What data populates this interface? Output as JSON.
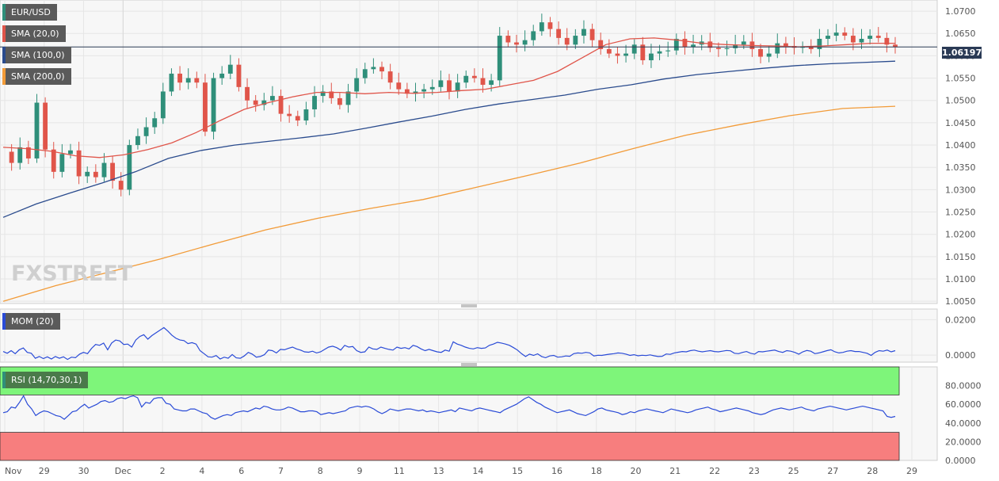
{
  "chart_data": [
    {
      "type": "candlestick",
      "symbol": "EUR/USD",
      "x_tick_labels": [
        "Nov",
        "29",
        "30",
        "Dec",
        "2",
        "4",
        "6",
        "7",
        "8",
        "9",
        "11",
        "13",
        "14",
        "15",
        "16",
        "18",
        "20",
        "21",
        "22",
        "23",
        "25",
        "27",
        "28",
        "29"
      ],
      "y_ticks": [
        "1.0700",
        "1.0650",
        "1.0600",
        "1.0550",
        "1.0500",
        "1.0450",
        "1.0400",
        "1.0350",
        "1.0300",
        "1.0250",
        "1.0200",
        "1.0150",
        "1.0100",
        "1.0050"
      ],
      "ylim": [
        1.0045,
        1.0725
      ],
      "last_price": "1.06197",
      "last_price_value": 1.06197,
      "candle_path": [
        1.0385,
        1.036,
        1.0395,
        1.037,
        1.0495,
        1.039,
        1.034,
        1.038,
        1.0388,
        1.033,
        1.034,
        1.0328,
        1.036,
        1.032,
        1.03,
        1.04,
        1.042,
        1.044,
        1.046,
        1.052,
        1.056,
        1.054,
        1.055,
        1.054,
        1.043,
        1.055,
        1.056,
        1.058,
        1.053,
        1.05,
        1.049,
        1.05,
        1.051,
        1.047,
        1.0465,
        1.0455,
        1.048,
        1.051,
        1.052,
        1.0505,
        1.049,
        1.052,
        1.055,
        1.057,
        1.0575,
        1.0565,
        1.054,
        1.0525,
        1.0515,
        1.052,
        1.0525,
        1.053,
        1.0545,
        1.052,
        1.054,
        1.0555,
        1.055,
        1.0535,
        1.0545,
        1.0645,
        1.063,
        1.0625,
        1.0635,
        1.0655,
        1.0675,
        1.066,
        1.064,
        1.0625,
        1.0645,
        1.066,
        1.0635,
        1.0615,
        1.0605,
        1.06,
        1.0605,
        1.0625,
        1.059,
        1.0605,
        1.061,
        1.0612,
        1.0638,
        1.062,
        1.0625,
        1.0632,
        1.0618,
        1.0615,
        1.0617,
        1.0625,
        1.0632,
        1.0615,
        1.0598,
        1.0605,
        1.0628,
        1.0622,
        1.0618,
        1.062,
        1.0615,
        1.0638,
        1.0645,
        1.0652,
        1.0645,
        1.063,
        1.0638,
        1.0645,
        1.064,
        1.0625,
        1.062
      ],
      "series": [
        {
          "name": "SMA (20,0)",
          "color": "#e0554a",
          "values": [
            1.0395,
            1.0392,
            1.0386,
            1.0376,
            1.0372,
            1.0378,
            1.039,
            1.0405,
            1.0428,
            1.0455,
            1.048,
            1.0495,
            1.0508,
            1.0518,
            1.0518,
            1.0515,
            1.0518,
            1.0516,
            1.0518,
            1.0522,
            1.0525,
            1.0535,
            1.0545,
            1.0565,
            1.0595,
            1.0625,
            1.0638,
            1.064,
            1.0635,
            1.0628,
            1.0625,
            1.0623,
            1.0622,
            1.062,
            1.0622,
            1.0625,
            1.0628,
            1.0628
          ]
        },
        {
          "name": "SMA (100,0)",
          "color": "#2a4b8d",
          "values": [
            1.0238,
            1.0268,
            1.0292,
            1.0315,
            1.034,
            1.037,
            1.0388,
            1.04,
            1.0408,
            1.0416,
            1.0425,
            1.0438,
            1.0452,
            1.0465,
            1.048,
            1.0492,
            1.0502,
            1.0512,
            1.0525,
            1.0535,
            1.0548,
            1.0558,
            1.0565,
            1.0572,
            1.0578,
            1.0582,
            1.0585,
            1.0588
          ]
        },
        {
          "name": "SMA (200,0)",
          "color": "#f29b38",
          "values": [
            1.005,
            1.0085,
            1.0115,
            1.0145,
            1.0178,
            1.021,
            1.0236,
            1.0258,
            1.0278,
            1.0305,
            1.0332,
            1.036,
            1.0392,
            1.0422,
            1.0445,
            1.0466,
            1.0482,
            1.0487
          ]
        }
      ]
    },
    {
      "type": "line",
      "name": "MOM (20)",
      "y_ticks": [
        "0.0200",
        "0.0000"
      ],
      "ylim": [
        -0.004,
        0.026
      ],
      "series": [
        {
          "name": "MOM (20)",
          "color": "#2a4bd7",
          "values": [
            0.002,
            0.001,
            0.0025,
            0.0008,
            0.003,
            0.004,
            0.0015,
            0.001,
            -0.0018,
            -0.0008,
            -0.002,
            -0.001,
            -0.0022,
            -0.0008,
            -0.0018,
            -0.001,
            -0.0025,
            -0.0012,
            -0.0015,
            0.0005,
            0.0015,
            0.0008,
            0.0038,
            0.006,
            0.0055,
            0.0068,
            0.003,
            0.0068,
            0.0085,
            0.008,
            0.006,
            0.0062,
            0.0045,
            0.0085,
            0.0105,
            0.0115,
            0.009,
            0.011,
            0.0125,
            0.014,
            0.0155,
            0.0135,
            0.0112,
            0.0095,
            0.0085,
            0.0082,
            0.0065,
            0.007,
            0.0062,
            0.0025,
            0.0008,
            -0.001,
            -0.0012,
            -0.0003,
            -0.0022,
            -0.0012,
            -0.0018,
            0.0003,
            -0.0016,
            -0.0018,
            -0.0005,
            0.0015,
            0.0005,
            -0.0012,
            -0.0008,
            0.0002,
            0.0028,
            0.0025,
            0.0012,
            0.0032,
            0.003,
            0.0038,
            0.0045,
            0.0035,
            0.0028,
            0.0018,
            0.0016,
            0.0022,
            0.0012,
            0.0018,
            0.0032,
            0.0045,
            0.005,
            0.0042,
            0.0028,
            0.0055,
            0.0045,
            0.0048,
            0.0025,
            0.0015,
            0.0018,
            0.0045,
            0.0035,
            0.0032,
            0.0045,
            0.0038,
            0.0032,
            0.0028,
            0.0045,
            0.0038,
            0.0042,
            0.0035,
            0.0055,
            0.0048,
            0.0035,
            0.0025,
            0.0032,
            0.0025,
            0.0018,
            0.0015,
            0.0028,
            0.0022,
            0.0075,
            0.0062,
            0.0055,
            0.0045,
            0.0038,
            0.0035,
            0.0042,
            0.0038,
            0.004,
            0.0055,
            0.0062,
            0.0072,
            0.0068,
            0.0062,
            0.0055,
            0.0042,
            0.0028,
            0.0008,
            -0.0008,
            0.0005,
            -0.0002,
            0.0007,
            -0.0008,
            -0.0015,
            -0.0005,
            -0.0002,
            -0.0012,
            -0.001,
            -0.0005,
            -0.0007,
            0.0008,
            0.0012,
            0.001,
            0.0015,
            0.0012,
            -0.0005,
            -0.0001,
            -0.0002,
            0.0002,
            0.0005,
            0.0008,
            0.0012,
            0.001,
            0.0005,
            -0.0002,
            0.0002,
            -0.0004,
            -0.0001,
            -0.0003,
            0.0001,
            -0.0004,
            -0.0008,
            -0.0007,
            0.0006,
            0.0004,
            0.0012,
            0.0016,
            0.002,
            0.0018,
            0.0025,
            0.0028,
            0.0022,
            0.0018,
            0.0022,
            0.0025,
            0.002,
            0.0018,
            0.0022,
            0.0026,
            0.0024,
            0.001,
            0.0008,
            0.0015,
            0.002,
            0.001,
            0.0005,
            0.002,
            0.0018,
            0.0022,
            0.0025,
            0.0028,
            0.002,
            0.0015,
            0.0025,
            0.0022,
            0.0015,
            0.0005,
            0.0018,
            0.0026,
            0.0022,
            0.0008,
            0.0012,
            0.0018,
            0.0025,
            0.003,
            0.0018,
            0.0012,
            0.0015,
            0.0022,
            0.0025,
            0.002,
            0.002,
            0.0015,
            0.001,
            -0.0002,
            0.0015,
            0.0025,
            0.0022,
            0.0028,
            0.0018,
            0.0025
          ]
        }
      ]
    },
    {
      "type": "line",
      "name": "RSI (14,70,30,1)",
      "y_ticks": [
        "80.0000",
        "60.0000",
        "40.0000",
        "20.0000",
        "0.0000"
      ],
      "ylim": [
        0,
        100
      ],
      "overbought": 70,
      "oversold": 30,
      "band_colors": {
        "overbought": "#7ef57a",
        "oversold": "#f77e7e"
      },
      "series": [
        {
          "name": "RSI (14,70,30,1)",
          "color": "#2a4bd7",
          "values": [
            51,
            52,
            57,
            56,
            62,
            69,
            60,
            55,
            48,
            51,
            53,
            52,
            50,
            48,
            47,
            44,
            48,
            52,
            53,
            57,
            60,
            56,
            58,
            60,
            63,
            64,
            62,
            63,
            66,
            67,
            66,
            68,
            69,
            67,
            57,
            62,
            61,
            66,
            67,
            67,
            61,
            60,
            55,
            54,
            53,
            53,
            55,
            55,
            53,
            51,
            50,
            46,
            44,
            46,
            48,
            49,
            48,
            51,
            52,
            53,
            52,
            54,
            56,
            55,
            58,
            57,
            55,
            54,
            54,
            55,
            57,
            56,
            54,
            52,
            52,
            53,
            53,
            52,
            49,
            50,
            51,
            50,
            51,
            52,
            53,
            56,
            57,
            58,
            57,
            58,
            57,
            55,
            52,
            50,
            52,
            55,
            54,
            53,
            54,
            55,
            55,
            54,
            53,
            54,
            52,
            53,
            52,
            51,
            52,
            53,
            54,
            52,
            56,
            55,
            54,
            53,
            55,
            56,
            55,
            54,
            53,
            52,
            51,
            54,
            56,
            58,
            60,
            63,
            66,
            68,
            65,
            62,
            60,
            57,
            55,
            53,
            51,
            52,
            53,
            54,
            52,
            50,
            49,
            48,
            50,
            52,
            55,
            56,
            54,
            53,
            52,
            51,
            49,
            50,
            52,
            51,
            53,
            54,
            55,
            54,
            53,
            52,
            51,
            53,
            55,
            54,
            53,
            52,
            51,
            52,
            54,
            55,
            56,
            57,
            55,
            54,
            52,
            53,
            54,
            55,
            56,
            55,
            54,
            53,
            51,
            50,
            49,
            50,
            52,
            54,
            55,
            56,
            55,
            54,
            55,
            56,
            57,
            55,
            54,
            53,
            55,
            56,
            57,
            58,
            57,
            56,
            55,
            54,
            55,
            56,
            57,
            58,
            57,
            56,
            55,
            54,
            53,
            47,
            46,
            47
          ]
        }
      ]
    }
  ],
  "legend": [
    {
      "label": "EUR/USD",
      "color": "#2f8f7a"
    },
    {
      "label": "SMA (20,0)",
      "color": "#e0554a"
    },
    {
      "label": "SMA (100,0)",
      "color": "#2a4b8d"
    },
    {
      "label": "SMA (200,0)",
      "color": "#f29b38"
    }
  ],
  "mom_legend": {
    "label": "MOM (20)",
    "color": "#2a4bd7"
  },
  "rsi_legend": {
    "label": "RSI (14,70,30,1)",
    "color": "#2f8f7a"
  },
  "watermark": "FXSTREET",
  "colors": {
    "bull": "#2f8f7a",
    "bear": "#e0554a",
    "grid": "#e6e6e6",
    "axis_text": "#555555",
    "price_line": "#2a3a55"
  }
}
